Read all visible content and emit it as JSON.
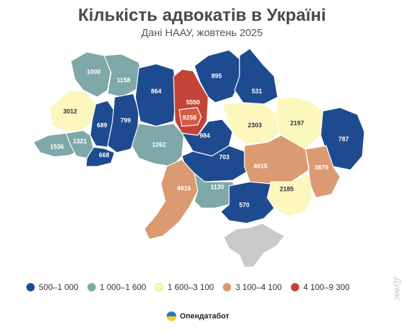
{
  "title": "Кількість адвокатів в Україні",
  "subtitle": "Дані НААУ, жовтень 2025",
  "colors": {
    "c1": "#1e4a8f",
    "c2": "#7fa8a8",
    "c3": "#fbf7bd",
    "c4": "#dc9a73",
    "c5": "#c34437",
    "crimea": "#c9c9c9"
  },
  "legend": [
    {
      "label": "500–1 000",
      "color": "#1e4a8f"
    },
    {
      "label": "1 000–1 600",
      "color": "#7fa8a8"
    },
    {
      "label": "1 600–3 100",
      "color": "#fbf7bd"
    },
    {
      "label": "3 100–4 100",
      "color": "#dc9a73"
    },
    {
      "label": "4 100–9 300",
      "color": "#c34437"
    }
  ],
  "regions": {
    "volyn": "1000",
    "rivne": "1158",
    "zhytomyr": "864",
    "kyiv_oblast": "5550",
    "kyiv_city": "9258",
    "chernihiv": "895",
    "sumy": "531",
    "lviv": "3012",
    "ternopil": "689",
    "khmelnytskyi": "799",
    "vinnytsia": "1262",
    "zakarpattia": "1536",
    "ivano_frankivsk": "1321",
    "chernivtsi": "668",
    "cherkasy": "984",
    "kirovohrad": "703",
    "poltava": "2303",
    "kharkiv": "2197",
    "luhansk": "787",
    "dnipro": "4015",
    "donetsk": "3879",
    "zaporizhzhia": "2185",
    "odesa": "4016",
    "mykolaiv": "1130",
    "kherson": "570"
  },
  "source_logo": "Опендатабот",
  "watermark": "Дувас"
}
